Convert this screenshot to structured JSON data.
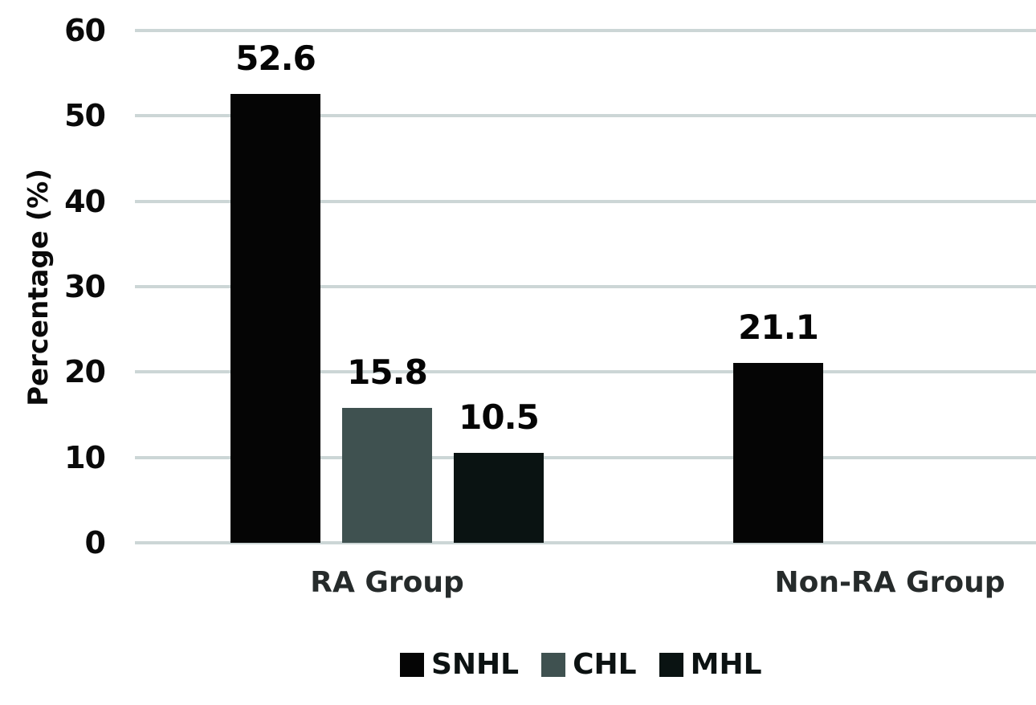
{
  "chart_data": {
    "type": "bar",
    "title": "",
    "xlabel": "",
    "ylabel": "Percentage (%)",
    "ylim": [
      0,
      60
    ],
    "yticks": [
      0,
      10,
      20,
      30,
      40,
      50,
      60
    ],
    "grid": true,
    "legend_position": "bottom",
    "data_labels_shown": true,
    "categories": [
      "RA Group",
      "Non-RA Group"
    ],
    "series": [
      {
        "name": "SNHL",
        "color": "#050505",
        "values": [
          52.6,
          21.1
        ],
        "labels": [
          "52.6",
          "21.1"
        ]
      },
      {
        "name": "CHL",
        "color": "#3f5150",
        "values": [
          15.8,
          null
        ],
        "labels": [
          "15.8",
          null
        ]
      },
      {
        "name": "MHL",
        "color": "#0a1312",
        "values": [
          10.5,
          null
        ],
        "labels": [
          "10.5",
          null
        ]
      }
    ]
  },
  "colors": {
    "background": "#ffffff",
    "gridline": "#ccd6d6",
    "axis_text": "#0a0a0a",
    "category_text": "#262b2b"
  }
}
